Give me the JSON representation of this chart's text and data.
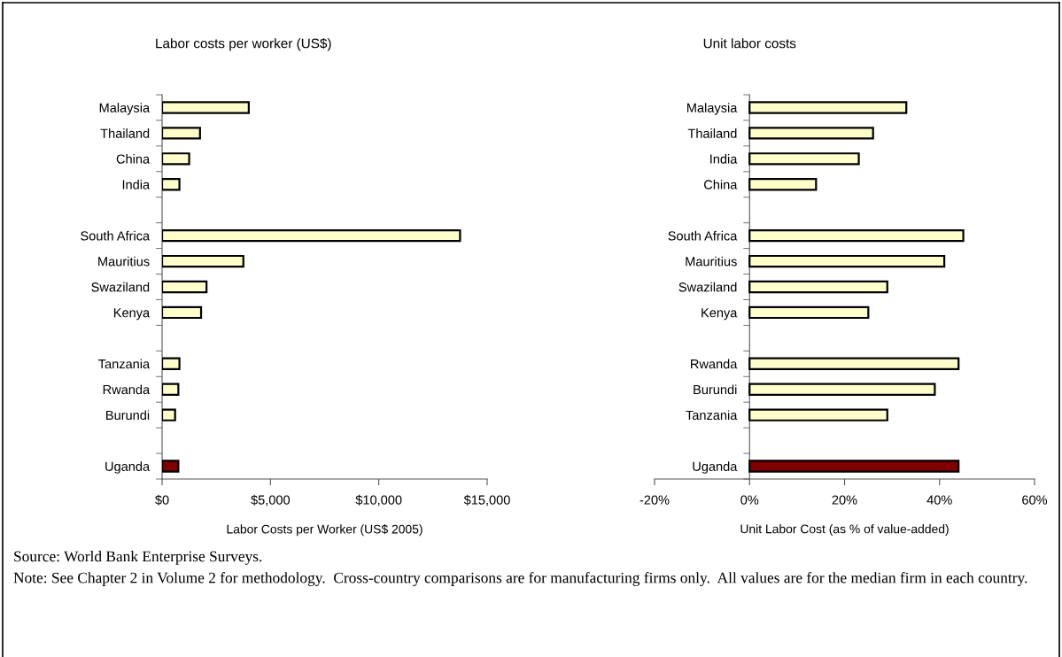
{
  "chart_data": [
    {
      "type": "bar",
      "orientation": "horizontal",
      "title": "Labor costs per worker (US$)",
      "xlabel": "Labor Costs per Worker (US$ 2005)",
      "categories": [
        "Malaysia",
        "Thailand",
        "China",
        "India",
        null,
        "South Africa",
        "Mauritius",
        "Swaziland",
        "Kenya",
        null,
        "Tanzania",
        "Rwanda",
        "Burundi",
        null,
        "Uganda"
      ],
      "values": [
        4000,
        1750,
        1250,
        800,
        null,
        13750,
        3750,
        2050,
        1800,
        null,
        800,
        750,
        600,
        null,
        750
      ],
      "colors": [
        "#ffffcc",
        "#ffffcc",
        "#ffffcc",
        "#ffffcc",
        null,
        "#ffffcc",
        "#ffffcc",
        "#ffffcc",
        "#ffffcc",
        null,
        "#ffffcc",
        "#ffffcc",
        "#ffffcc",
        null,
        "#800000"
      ],
      "xlim": [
        0,
        15000
      ],
      "xticks": [
        {
          "value": 0,
          "label": "$0"
        },
        {
          "value": 5000,
          "label": "$5,000"
        },
        {
          "value": 10000,
          "label": "$10,000"
        },
        {
          "value": 15000,
          "label": "$15,000"
        }
      ],
      "annotations": [
        "Source: World Bank Enterprise Surveys.",
        "Note: See Chapter 2 in Volume 2 for methodology.  Cross-country comparisons are for manufacturing firms only.  All values are for the median firm in each country."
      ]
    },
    {
      "type": "bar",
      "orientation": "horizontal",
      "title": "Unit labor costs",
      "xlabel": "Unit Labor Cost (as % of value-added)",
      "categories": [
        "Malaysia",
        "Thailand",
        "India",
        "China",
        null,
        "South Africa",
        "Mauritius",
        "Swaziland",
        "Kenya",
        null,
        "Rwanda",
        "Burundi",
        "Tanzania",
        null,
        "Uganda"
      ],
      "values": [
        33,
        26,
        23,
        14,
        null,
        45,
        41,
        29,
        25,
        null,
        44,
        39,
        29,
        null,
        44
      ],
      "colors": [
        "#ffffcc",
        "#ffffcc",
        "#ffffcc",
        "#ffffcc",
        null,
        "#ffffcc",
        "#ffffcc",
        "#ffffcc",
        "#ffffcc",
        null,
        "#ffffcc",
        "#ffffcc",
        "#ffffcc",
        null,
        "#800000"
      ],
      "xlim": [
        -20,
        60
      ],
      "xticks": [
        {
          "value": -20,
          "label": "-20%"
        },
        {
          "value": 0,
          "label": "0%"
        },
        {
          "value": 20,
          "label": "20%"
        },
        {
          "value": 40,
          "label": "40%"
        },
        {
          "value": 60,
          "label": "60%"
        }
      ]
    }
  ]
}
